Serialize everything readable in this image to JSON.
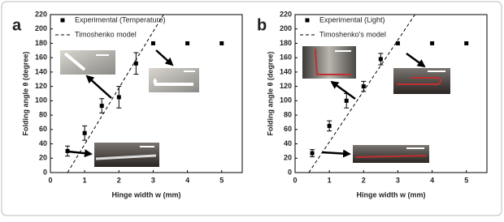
{
  "chart_data": [
    {
      "type": "scatter",
      "panel_label": "a",
      "x_label": "Hinge width w (mm)",
      "y_label": "Folding angle θ (degree)",
      "xlim": [
        0,
        5.6
      ],
      "xticks": [
        0,
        1,
        2,
        3,
        4,
        5
      ],
      "ylim": [
        0,
        220
      ],
      "yticks": [
        0,
        20,
        40,
        60,
        80,
        100,
        120,
        140,
        160,
        180,
        200,
        220
      ],
      "series": [
        {
          "name": "Experimental (Temperature)",
          "type": "scatter",
          "color": "#000000",
          "x": [
            0.5,
            1,
            1.5,
            2,
            2.5,
            3,
            4,
            5
          ],
          "values": [
            30,
            55,
            93,
            105,
            152,
            180,
            180,
            180
          ],
          "errors": [
            7,
            10,
            10,
            15,
            15,
            null,
            null,
            null
          ]
        },
        {
          "name": "Timoshenko model",
          "type": "line",
          "dashed": true,
          "color": "#000000",
          "x": [
            0.5,
            3.3
          ],
          "values": [
            0,
            220
          ]
        }
      ]
    },
    {
      "type": "scatter",
      "panel_label": "b",
      "x_label": "Hinge width w (mm)",
      "y_label": "Folding angle θ (degree)",
      "xlim": [
        0,
        5.6
      ],
      "xticks": [
        0,
        1,
        2,
        3,
        4,
        5
      ],
      "ylim": [
        0,
        220
      ],
      "yticks": [
        0,
        20,
        40,
        60,
        80,
        100,
        120,
        140,
        160,
        180,
        200,
        220
      ],
      "series": [
        {
          "name": "Experimental (Light)",
          "type": "scatter",
          "color": "#000000",
          "x": [
            0.5,
            1,
            1.5,
            2,
            2.5,
            3,
            4,
            5
          ],
          "values": [
            27,
            65,
            100,
            120,
            158,
            180,
            180,
            180
          ],
          "errors": [
            5,
            7,
            10,
            7,
            8,
            null,
            null,
            null
          ]
        },
        {
          "name": "Timoshenko's model",
          "type": "line",
          "dashed": true,
          "color": "#000000",
          "x": [
            0.4,
            3.5
          ],
          "values": [
            0,
            220
          ]
        }
      ]
    }
  ]
}
